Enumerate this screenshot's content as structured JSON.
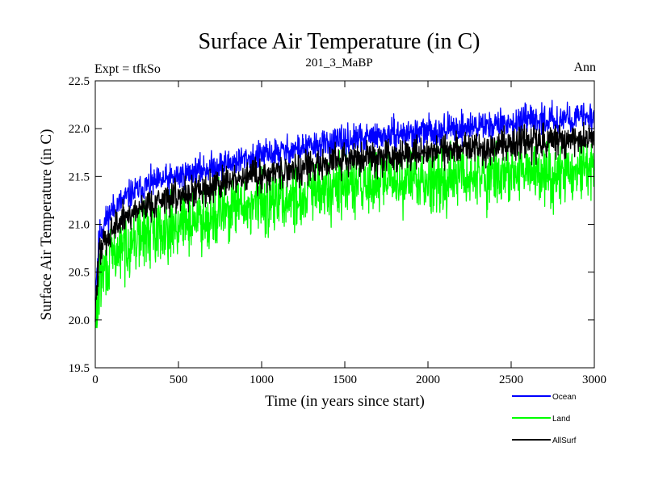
{
  "chart_data": {
    "type": "line",
    "title": "Surface Air Temperature (in C)",
    "subtitle": "201_3_MaBP",
    "left_label": "Expt = tfkSo",
    "right_label": "Ann",
    "xlabel": "Time (in years since start)",
    "ylabel": "Surface Air Temperature (in C)",
    "xlim": [
      0,
      3000
    ],
    "ylim": [
      19.5,
      22.5
    ],
    "x_ticks": [
      0,
      500,
      1000,
      1500,
      2000,
      2500,
      3000
    ],
    "x_tick_labels": [
      "0",
      "500",
      "1000",
      "1500",
      "2000",
      "2500",
      "3000"
    ],
    "y_ticks": [
      19.5,
      20.0,
      20.5,
      21.0,
      21.5,
      22.0,
      22.5
    ],
    "y_tick_labels": [
      "19.5",
      "20.0",
      "20.5",
      "21.0",
      "21.5",
      "22.0",
      "22.5"
    ],
    "grid": false,
    "legend_position": "bottom-right outside",
    "sample_years": [
      0,
      25,
      50,
      100,
      200,
      300,
      500,
      750,
      1000,
      1250,
      1500,
      1750,
      2000,
      2250,
      2500,
      2750,
      3000
    ],
    "series": [
      {
        "name": "Ocean",
        "color": "#0000ff",
        "trend": [
          20.3,
          20.9,
          21.0,
          21.15,
          21.3,
          21.4,
          21.5,
          21.62,
          21.72,
          21.8,
          21.87,
          21.93,
          21.97,
          22.02,
          22.06,
          22.1,
          22.12
        ],
        "noise_amplitude": 0.14
      },
      {
        "name": "Land",
        "color": "#00ff00",
        "trend": [
          19.9,
          20.4,
          20.5,
          20.65,
          20.8,
          20.9,
          21.0,
          21.12,
          21.22,
          21.3,
          21.38,
          21.44,
          21.48,
          21.5,
          21.52,
          21.55,
          21.55
        ],
        "noise_amplitude": 0.3
      },
      {
        "name": "AllSurf",
        "color": "#000000",
        "trend": [
          20.1,
          20.7,
          20.8,
          20.95,
          21.1,
          21.2,
          21.3,
          21.42,
          21.52,
          21.6,
          21.67,
          21.72,
          21.76,
          21.8,
          21.84,
          21.87,
          21.9
        ],
        "noise_amplitude": 0.16
      }
    ]
  }
}
